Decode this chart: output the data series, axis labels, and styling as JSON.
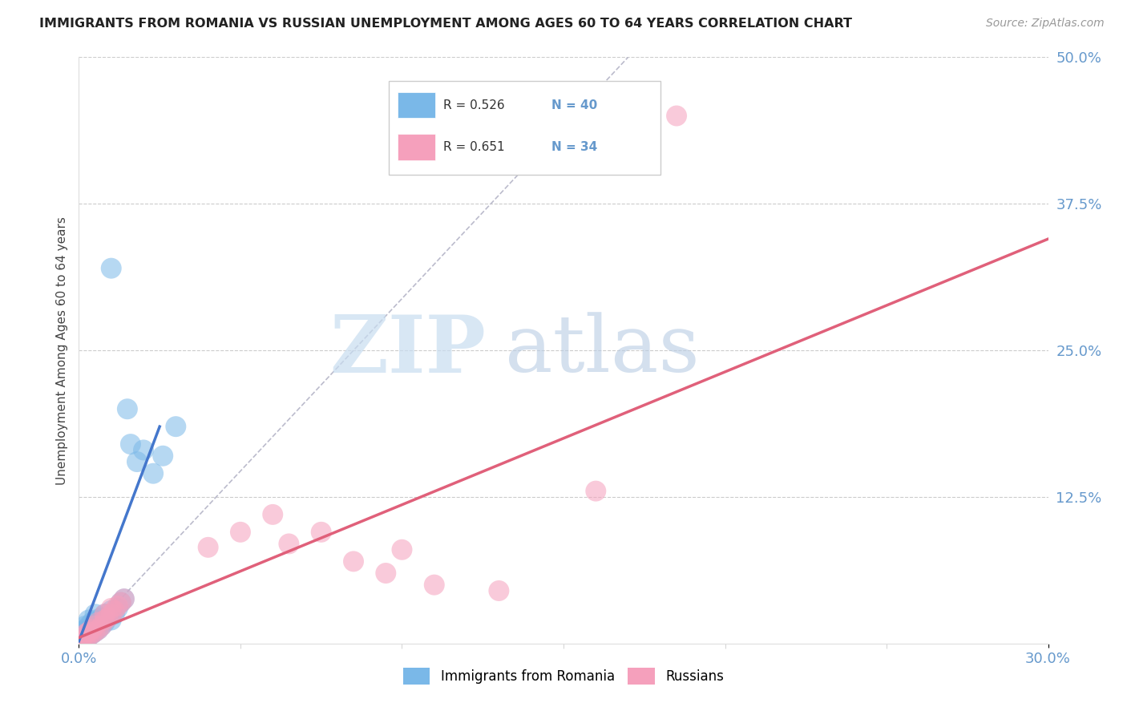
{
  "title": "IMMIGRANTS FROM ROMANIA VS RUSSIAN UNEMPLOYMENT AMONG AGES 60 TO 64 YEARS CORRELATION CHART",
  "source": "Source: ZipAtlas.com",
  "ylabel": "Unemployment Among Ages 60 to 64 years",
  "xlim": [
    0.0,
    0.3
  ],
  "ylim": [
    0.0,
    0.5
  ],
  "xticks": [
    0.0,
    0.3
  ],
  "xticklabels": [
    "0.0%",
    "30.0%"
  ],
  "ytick_vals": [
    0.125,
    0.25,
    0.375,
    0.5
  ],
  "ytick_labels": [
    "12.5%",
    "25.0%",
    "37.5%",
    "50.0%"
  ],
  "romania_R": 0.526,
  "romania_N": 40,
  "russian_R": 0.651,
  "russian_N": 34,
  "romania_color": "#7ab8e8",
  "russian_color": "#f5a0bc",
  "romania_line_color": "#4477cc",
  "russian_line_color": "#e0607a",
  "tick_color": "#6699cc",
  "grid_color": "#cccccc",
  "romania_x": [
    0.001,
    0.001,
    0.001,
    0.001,
    0.002,
    0.002,
    0.002,
    0.002,
    0.003,
    0.003,
    0.003,
    0.003,
    0.004,
    0.004,
    0.004,
    0.005,
    0.005,
    0.005,
    0.005,
    0.006,
    0.006,
    0.007,
    0.007,
    0.008,
    0.008,
    0.009,
    0.01,
    0.01,
    0.011,
    0.012,
    0.013,
    0.014,
    0.015,
    0.016,
    0.018,
    0.02,
    0.023,
    0.026,
    0.03,
    0.01
  ],
  "romania_y": [
    0.002,
    0.004,
    0.006,
    0.01,
    0.005,
    0.008,
    0.012,
    0.015,
    0.006,
    0.01,
    0.015,
    0.02,
    0.008,
    0.012,
    0.018,
    0.01,
    0.015,
    0.02,
    0.025,
    0.012,
    0.018,
    0.015,
    0.022,
    0.018,
    0.025,
    0.022,
    0.02,
    0.028,
    0.025,
    0.03,
    0.035,
    0.038,
    0.2,
    0.17,
    0.155,
    0.165,
    0.145,
    0.16,
    0.185,
    0.32
  ],
  "russian_x": [
    0.001,
    0.001,
    0.002,
    0.002,
    0.003,
    0.003,
    0.004,
    0.004,
    0.005,
    0.005,
    0.006,
    0.006,
    0.007,
    0.008,
    0.008,
    0.009,
    0.01,
    0.01,
    0.011,
    0.012,
    0.013,
    0.014,
    0.04,
    0.05,
    0.06,
    0.065,
    0.075,
    0.085,
    0.095,
    0.1,
    0.11,
    0.13,
    0.16,
    0.185
  ],
  "russian_y": [
    0.002,
    0.005,
    0.004,
    0.008,
    0.006,
    0.01,
    0.008,
    0.012,
    0.01,
    0.015,
    0.012,
    0.018,
    0.015,
    0.02,
    0.025,
    0.022,
    0.025,
    0.03,
    0.028,
    0.032,
    0.035,
    0.038,
    0.082,
    0.095,
    0.11,
    0.085,
    0.095,
    0.07,
    0.06,
    0.08,
    0.05,
    0.045,
    0.13,
    0.45
  ]
}
